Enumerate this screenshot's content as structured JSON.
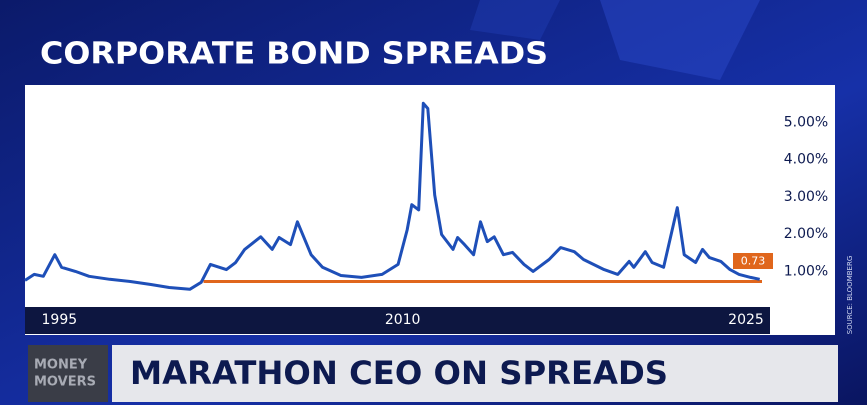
{
  "chart_data": {
    "type": "line",
    "title": "CORPORATE BOND SPREADS",
    "source": "SOURCE: BLOOMBERG",
    "x": [
      1993.5,
      1993.9,
      1994.3,
      1994.8,
      1995.1,
      1995.7,
      1996.3,
      1997.2,
      1998.1,
      1999.0,
      1999.8,
      2000.7,
      2001.2,
      2001.6,
      2002.3,
      2002.7,
      2003.1,
      2003.8,
      2004.3,
      2004.6,
      2005.1,
      2005.4,
      2006.0,
      2006.5,
      2007.3,
      2008.2,
      2009.1,
      2009.8,
      2010.2,
      2010.4,
      2010.7,
      2010.9,
      2011.1,
      2011.4,
      2011.7,
      2012.2,
      2012.4,
      2012.7,
      2013.1,
      2013.4,
      2013.7,
      2014.0,
      2014.4,
      2014.8,
      2015.3,
      2015.7,
      2016.4,
      2016.9,
      2017.5,
      2017.9,
      2018.8,
      2019.4,
      2019.9,
      2020.1,
      2020.6,
      2020.9,
      2021.4,
      2022.0,
      2022.3,
      2022.8,
      2023.1,
      2023.4,
      2023.9,
      2024.3,
      2024.7,
      2025.2,
      2025.6
    ],
    "series": [
      {
        "color": "#1e4fb8",
        "values": [
          0.76,
          0.92,
          0.87,
          1.45,
          1.11,
          1.0,
          0.87,
          0.79,
          0.73,
          0.65,
          0.57,
          0.52,
          0.71,
          1.19,
          1.05,
          1.24,
          1.59,
          1.93,
          1.59,
          1.91,
          1.72,
          2.33,
          1.45,
          1.11,
          0.89,
          0.84,
          0.92,
          1.19,
          2.12,
          2.79,
          2.65,
          5.51,
          5.37,
          3.05,
          1.99,
          1.59,
          1.91,
          1.72,
          1.45,
          2.33,
          1.8,
          1.93,
          1.45,
          1.51,
          1.19,
          1.0,
          1.32,
          1.64,
          1.53,
          1.32,
          1.05,
          0.92,
          1.27,
          1.11,
          1.53,
          1.24,
          1.11,
          2.71,
          1.45,
          1.24,
          1.59,
          1.37,
          1.27,
          1.05,
          0.92,
          0.84,
          0.79
        ]
      }
    ],
    "reference_line": {
      "value": 0.73,
      "color": "#e0661c",
      "x_start": 2001.3
    },
    "xlim": [
      1993.5,
      2025.7
    ],
    "xticks": [
      1995,
      2010,
      2025
    ],
    "ylim": [
      0.1,
      6.0
    ],
    "yticks": [
      {
        "value": 1,
        "label": "1.00%"
      },
      {
        "value": 2,
        "label": "2.00%"
      },
      {
        "value": 3,
        "label": "3.00%"
      },
      {
        "value": 4,
        "label": "4.00%"
      },
      {
        "value": 5,
        "label": "5.00%"
      }
    ],
    "grid": false
  },
  "lower_third": {
    "show": [
      "MONEY",
      "MOVERS"
    ],
    "headline": "MARATHON CEO ON SPREADS"
  }
}
